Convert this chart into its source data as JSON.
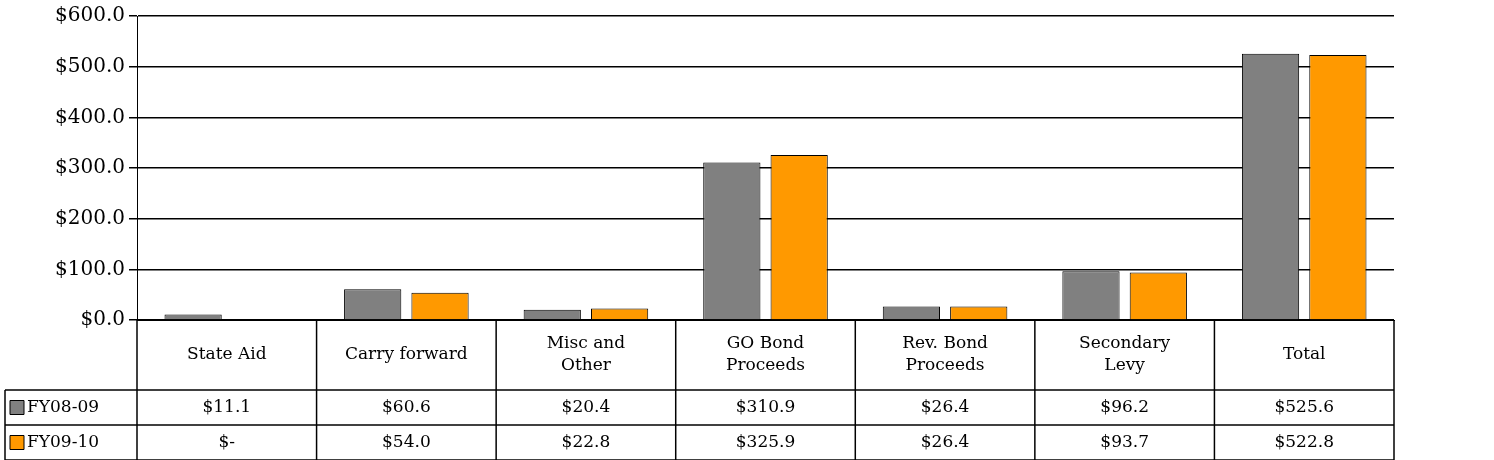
{
  "chart_data": {
    "type": "bar",
    "categories": [
      "State Aid",
      "Carry forward",
      "Misc and Other",
      "GO Bond Proceeds",
      "Rev. Bond Proceeds",
      "Secondary Levy",
      "Total"
    ],
    "series": [
      {
        "name": "FY08-09",
        "color": "#808080",
        "values": [
          11.1,
          60.6,
          20.4,
          310.9,
          26.4,
          96.2,
          525.6
        ],
        "value_labels": [
          "$11.1",
          "$60.6",
          "$20.4",
          "$310.9",
          "$26.4",
          "$96.2",
          "$525.6"
        ]
      },
      {
        "name": "FY09-10",
        "color": "#ff9900",
        "values": [
          0,
          54.0,
          22.8,
          325.9,
          26.4,
          93.7,
          522.8
        ],
        "value_labels": [
          "$-",
          "$54.0",
          "$22.8",
          "$325.9",
          "$26.4",
          "$93.7",
          "$522.8"
        ]
      }
    ],
    "ylim": [
      0,
      600
    ],
    "yticks": [
      {
        "value": 0,
        "label": "$0.0"
      },
      {
        "value": 100,
        "label": "$100.0"
      },
      {
        "value": 200,
        "label": "$200.0"
      },
      {
        "value": 300,
        "label": "$300.0"
      },
      {
        "value": 400,
        "label": "$400.0"
      },
      {
        "value": 500,
        "label": "$500.0"
      },
      {
        "value": 600,
        "label": "$600.0"
      }
    ],
    "grid": "y",
    "legend": "bottom left"
  }
}
